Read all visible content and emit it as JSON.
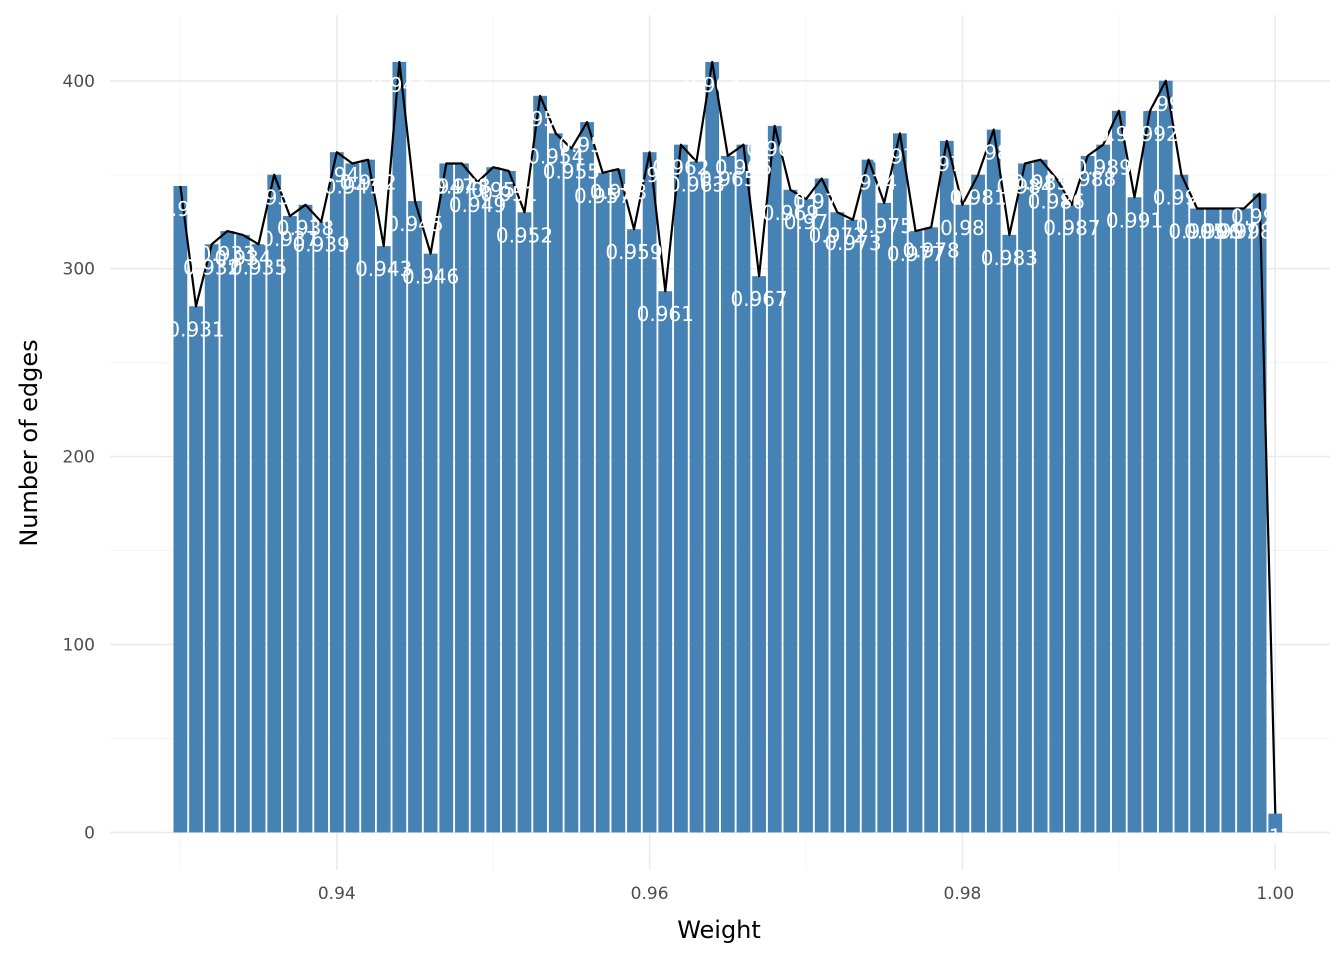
{
  "chart_data": {
    "type": "bar",
    "title": "",
    "xlabel": "Weight",
    "ylabel": "Number of edges",
    "xlim": [
      0.9255,
      1.0035
    ],
    "ylim": [
      -20,
      435
    ],
    "x_ticks": [
      0.94,
      0.96,
      0.98,
      1.0
    ],
    "x_tick_labels": [
      "0.94",
      "0.96",
      "0.98",
      "1.00"
    ],
    "y_ticks": [
      0,
      100,
      200,
      300,
      400
    ],
    "y_tick_labels": [
      "0",
      "100",
      "200",
      "300",
      "400"
    ],
    "grid": true,
    "bar_width": 0.00088,
    "bar_color": "#4682B4",
    "line_color": "#000000",
    "label_color": "#ffffff",
    "x": [
      0.93,
      0.931,
      0.932,
      0.933,
      0.934,
      0.935,
      0.936,
      0.937,
      0.938,
      0.939,
      0.94,
      0.941,
      0.942,
      0.943,
      0.944,
      0.945,
      0.946,
      0.947,
      0.948,
      0.949,
      0.95,
      0.951,
      0.952,
      0.953,
      0.954,
      0.955,
      0.956,
      0.957,
      0.958,
      0.959,
      0.96,
      0.961,
      0.962,
      0.963,
      0.964,
      0.965,
      0.966,
      0.967,
      0.968,
      0.969,
      0.97,
      0.971,
      0.972,
      0.973,
      0.974,
      0.975,
      0.976,
      0.977,
      0.978,
      0.979,
      0.98,
      0.981,
      0.982,
      0.983,
      0.984,
      0.985,
      0.986,
      0.987,
      0.988,
      0.989,
      0.99,
      0.991,
      0.992,
      0.993,
      0.994,
      0.995,
      0.996,
      0.997,
      0.998,
      0.999,
      1.0
    ],
    "values": [
      344,
      280,
      313,
      320,
      318,
      313,
      350,
      328,
      334,
      325,
      362,
      356,
      358,
      312,
      410,
      336,
      308,
      356,
      356,
      346,
      354,
      352,
      330,
      392,
      372,
      364,
      378,
      351,
      353,
      321,
      362,
      288,
      366,
      357,
      410,
      360,
      366,
      296,
      376,
      342,
      337,
      348,
      330,
      326,
      358,
      335,
      372,
      320,
      322,
      368,
      334,
      350,
      374,
      318,
      356,
      358,
      348,
      334,
      360,
      366,
      384,
      338,
      384,
      400,
      350,
      332,
      332,
      332,
      332,
      340,
      10
    ],
    "labels": [
      "0.93",
      "0.931",
      "0.932",
      "0.933",
      "0.934",
      "0.935",
      "0.936",
      "0.937",
      "0.938",
      "0.939",
      "0.94",
      "0.941",
      "0.942",
      "0.943",
      "0.944",
      "0.945",
      "0.946",
      "0.947",
      "0.948",
      "0.949",
      "0.95",
      "0.951",
      "0.952",
      "0.953",
      "0.954",
      "0.955",
      "0.956",
      "0.957",
      "0.958",
      "0.959",
      "0.96",
      "0.961",
      "0.962",
      "0.963",
      "0.964",
      "0.965",
      "0.966",
      "0.967",
      "0.968",
      "0.969",
      "0.97",
      "0.971",
      "0.972",
      "0.973",
      "0.974",
      "0.975",
      "0.976",
      "0.977",
      "0.978",
      "0.979",
      "0.98",
      "0.981",
      "0.982",
      "0.983",
      "0.984",
      "0.985",
      "0.986",
      "0.987",
      "0.988",
      "0.989",
      "0.99",
      "0.991",
      "0.992",
      "0.993",
      "0.994",
      "0.995",
      "0.996",
      "0.997",
      "0.998",
      "0.999",
      "1"
    ]
  }
}
